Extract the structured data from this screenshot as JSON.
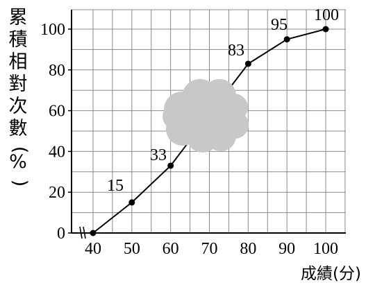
{
  "chart_data": {
    "type": "line",
    "title": "",
    "xlabel": "成績(分)",
    "ylabel": "累積相對次數(%)",
    "xlim": [
      40,
      100
    ],
    "ylim": [
      0,
      100
    ],
    "axis_break_on_x": true,
    "grid": true,
    "x_ticks": [
      "40",
      "50",
      "60",
      "70",
      "80",
      "90",
      "100"
    ],
    "y_ticks": [
      "0",
      "20",
      "40",
      "60",
      "80",
      "100"
    ],
    "series": [
      {
        "x": [
          40,
          50,
          60,
          80,
          90,
          100
        ],
        "y": [
          0,
          15,
          33,
          83,
          95,
          100
        ],
        "labels": [
          "",
          "15",
          "33",
          "83",
          "95",
          "100"
        ]
      }
    ],
    "obscured_region": "cloud shape covering the curve between x = 60 and x = 80",
    "colors": {
      "line": "#000000",
      "grid": "#888888",
      "cloud": "#c8c8c8"
    }
  }
}
